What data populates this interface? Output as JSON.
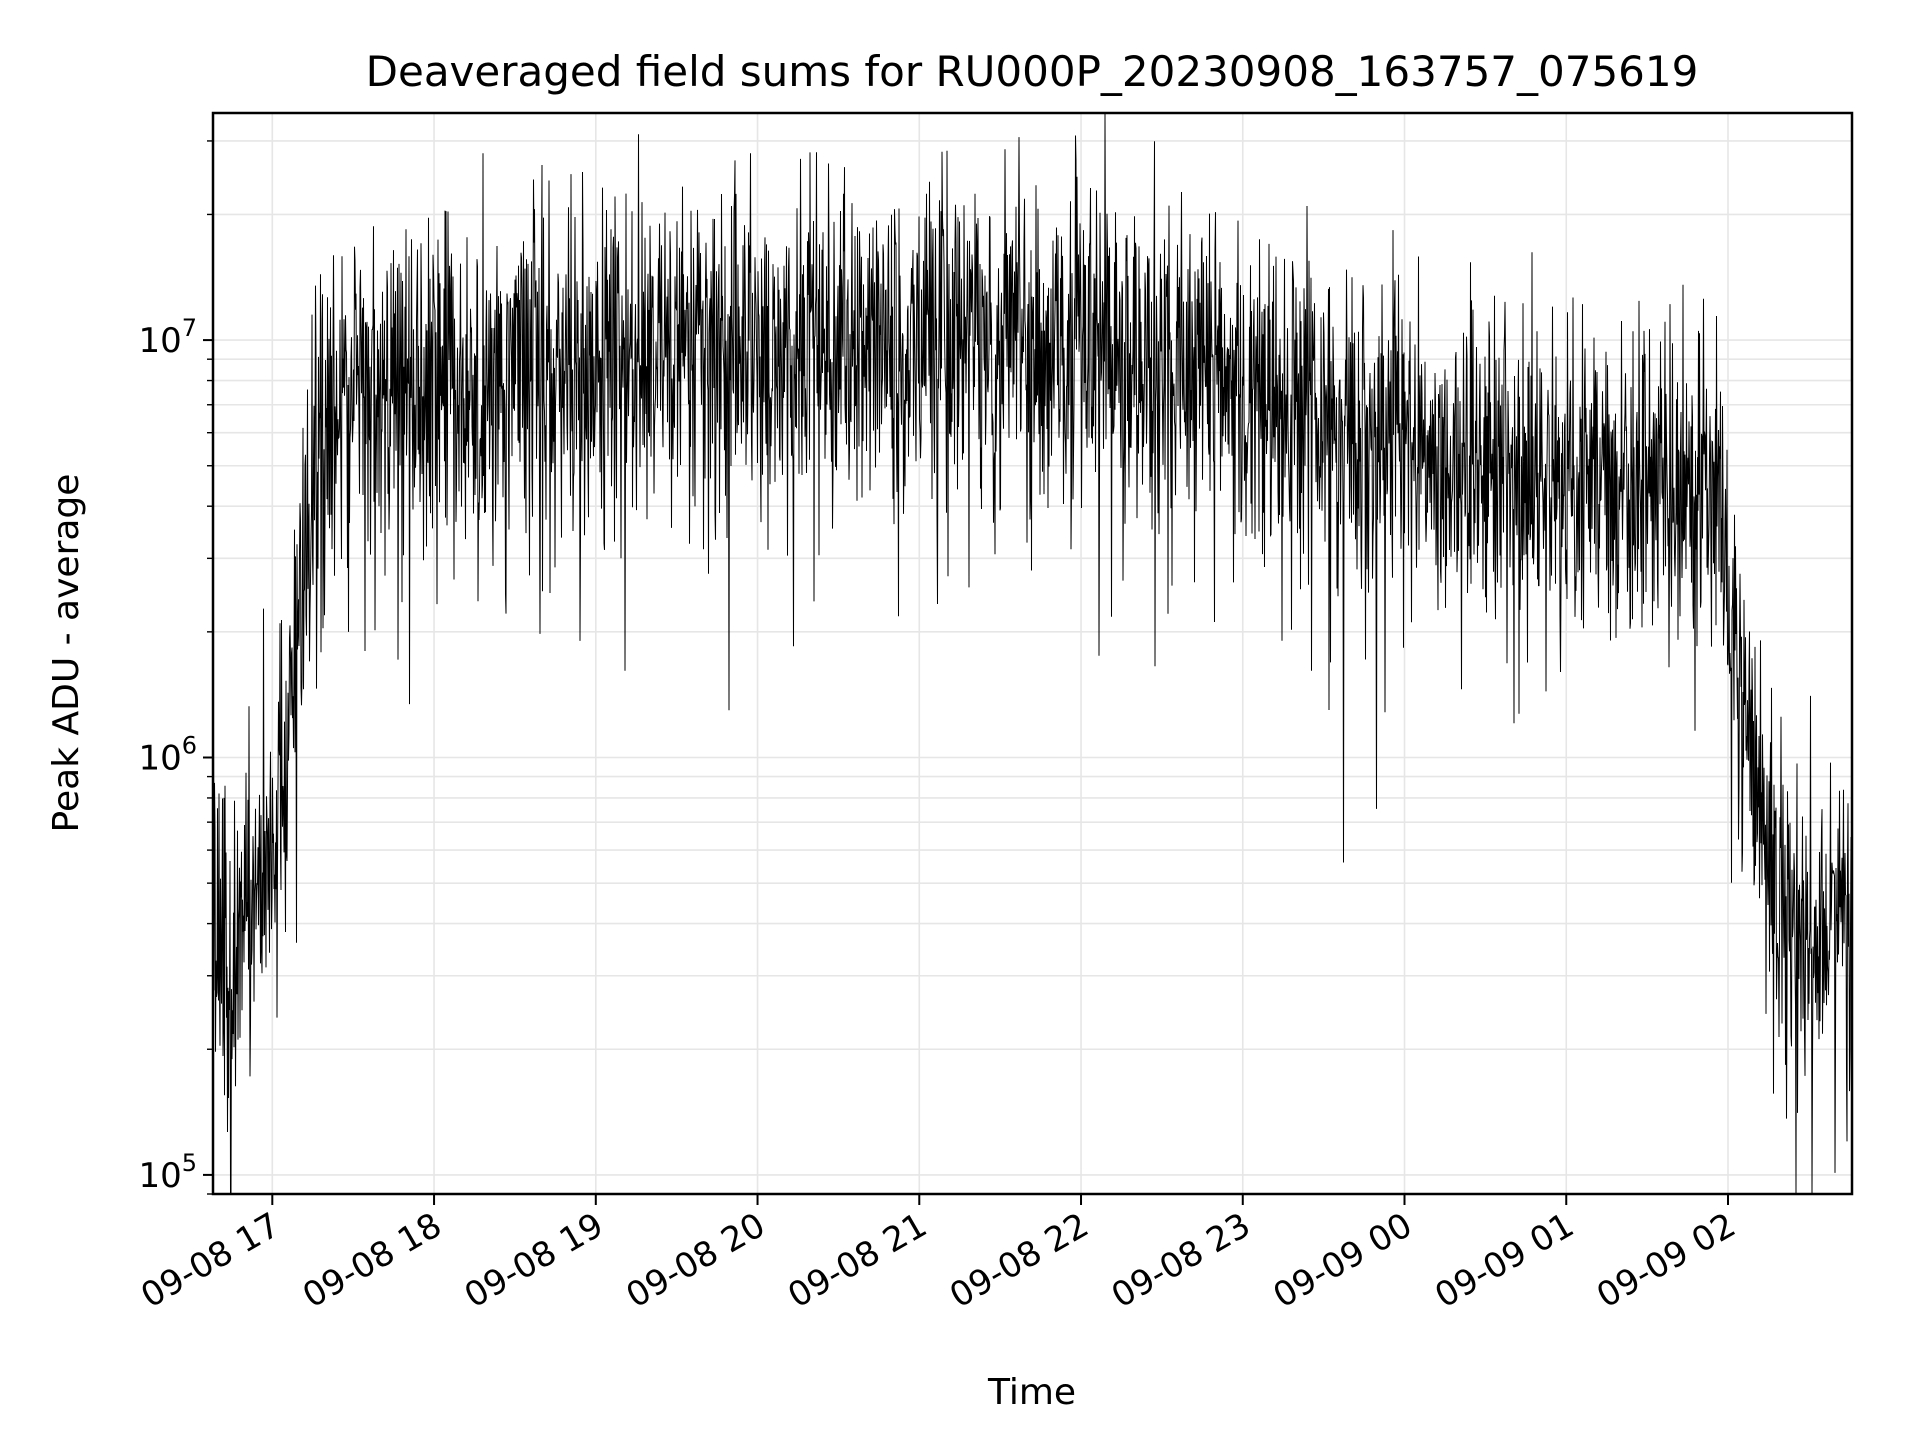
{
  "chart_data": {
    "type": "line",
    "title": "Deaveraged field sums for RU000P_20230908_163757_075619",
    "xlabel": "Time",
    "ylabel": "Peak ADU - average",
    "yscale": "log",
    "ylim": [
      90000,
      35000000
    ],
    "xlim": [
      "2023-09-08 16:38",
      "2023-09-09 02:46"
    ],
    "grid": true,
    "line_color": "#000000",
    "grid_color": "#e6e6e6",
    "x_ticks": [
      {
        "value": "2023-09-08 17:00",
        "label": "09-08 17"
      },
      {
        "value": "2023-09-08 18:00",
        "label": "09-08 18"
      },
      {
        "value": "2023-09-08 19:00",
        "label": "09-08 19"
      },
      {
        "value": "2023-09-08 20:00",
        "label": "09-08 20"
      },
      {
        "value": "2023-09-08 21:00",
        "label": "09-08 21"
      },
      {
        "value": "2023-09-08 22:00",
        "label": "09-08 22"
      },
      {
        "value": "2023-09-08 23:00",
        "label": "09-08 23"
      },
      {
        "value": "2023-09-09 00:00",
        "label": "09-09 00"
      },
      {
        "value": "2023-09-09 01:00",
        "label": "09-09 01"
      },
      {
        "value": "2023-09-09 02:00",
        "label": "09-09 02"
      }
    ],
    "y_ticks": [
      {
        "value": 100000,
        "base": "10",
        "exp": "5"
      },
      {
        "value": 1000000,
        "base": "10",
        "exp": "6"
      },
      {
        "value": 10000000,
        "base": "10",
        "exp": "7"
      }
    ],
    "series": [
      {
        "x": [
          "2023-09-08 16:38",
          "2023-09-08 16:45",
          "2023-09-08 16:50",
          "2023-09-08 16:55",
          "2023-09-08 17:00",
          "2023-09-08 17:05",
          "2023-09-08 17:08",
          "2023-09-08 17:12",
          "2023-09-08 17:16",
          "2023-09-08 17:20",
          "2023-09-08 17:30",
          "2023-09-08 17:45",
          "2023-09-08 18:00",
          "2023-09-08 18:30",
          "2023-09-08 19:00",
          "2023-09-08 19:30",
          "2023-09-08 20:00",
          "2023-09-08 20:30",
          "2023-09-08 21:00",
          "2023-09-08 21:30",
          "2023-09-08 22:00",
          "2023-09-08 22:30",
          "2023-09-08 23:00",
          "2023-09-08 23:30",
          "2023-09-09 00:00",
          "2023-09-09 00:30",
          "2023-09-09 01:00",
          "2023-09-09 01:30",
          "2023-09-09 01:55",
          "2023-09-09 02:00",
          "2023-09-09 02:05",
          "2023-09-09 02:10",
          "2023-09-09 02:15",
          "2023-09-09 02:20",
          "2023-09-09 02:30",
          "2023-09-09 02:40",
          "2023-09-09 02:46"
        ],
        "y": [
          500000,
          300000,
          400000,
          500000,
          600000,
          900000,
          1800000,
          3000000,
          5500000,
          7000000,
          7500000,
          8000000,
          8000000,
          8000000,
          9000000,
          9500000,
          10000000,
          10000000,
          10000000,
          10000000,
          10000000,
          9000000,
          7500000,
          6500000,
          5500000,
          5000000,
          4500000,
          4500000,
          4500000,
          2500000,
          1300000,
          800000,
          600000,
          450000,
          380000,
          400000,
          450000
        ]
      }
    ]
  }
}
